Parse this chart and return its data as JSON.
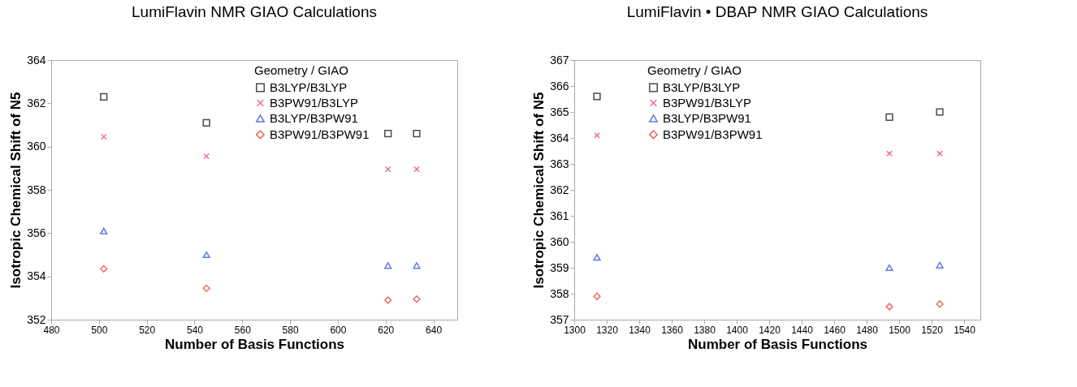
{
  "chart_data": [
    {
      "type": "scatter",
      "title": "LumiFlavin NMR GIAO Calculations",
      "xlabel": "Number of Basis Functions",
      "ylabel": "Isotropic Chemical Shift of N5",
      "legend_title": "Geometry / GIAO",
      "legend": "top",
      "grid": false,
      "xlim": [
        480,
        650
      ],
      "xticks": [
        480,
        500,
        520,
        540,
        560,
        580,
        600,
        620,
        640
      ],
      "ylim": [
        352,
        364
      ],
      "yticks": [
        352,
        354,
        356,
        358,
        360,
        362,
        364
      ],
      "x": [
        502,
        545,
        621,
        633
      ],
      "series": [
        {
          "name": "B3LYP/B3LYP",
          "color": "#000000",
          "marker": "square",
          "values": [
            362.3,
            361.1,
            360.6,
            360.6
          ]
        },
        {
          "name": "B3PW91/B3LYP",
          "color": "#e8308c",
          "marker": "cross",
          "values": [
            360.45,
            359.55,
            358.95,
            358.95
          ]
        },
        {
          "name": "B3LYP/B3PW91",
          "color": "#1f3fe0",
          "marker": "triangle",
          "values": [
            356.1,
            355.0,
            354.5,
            354.5
          ]
        },
        {
          "name": "B3PW91/B3PW91",
          "color": "#e0301e",
          "marker": "diamond",
          "values": [
            354.35,
            353.45,
            352.9,
            352.95
          ]
        }
      ]
    },
    {
      "type": "scatter",
      "title": "LumiFlavin • DBAP NMR GIAO Calculations",
      "xlabel": "Number of Basis Functions",
      "ylabel": "Isotropic Chemical Shift of N5",
      "legend_title": "Geometry / GIAO",
      "legend": "top left",
      "grid": false,
      "xlim": [
        1300,
        1550
      ],
      "xticks": [
        1300,
        1320,
        1340,
        1360,
        1380,
        1400,
        1420,
        1440,
        1460,
        1480,
        1500,
        1520,
        1540
      ],
      "ylim": [
        357,
        367
      ],
      "yticks": [
        357,
        358,
        359,
        360,
        361,
        362,
        363,
        364,
        365,
        366,
        367
      ],
      "x": [
        1314,
        1494,
        1525
      ],
      "series": [
        {
          "name": "B3LYP/B3LYP",
          "color": "#000000",
          "marker": "square",
          "values": [
            365.6,
            364.8,
            365.0
          ]
        },
        {
          "name": "B3PW91/B3LYP",
          "color": "#e8308c",
          "marker": "cross",
          "values": [
            364.1,
            363.4,
            363.4
          ]
        },
        {
          "name": "B3LYP/B3PW91",
          "color": "#1f3fe0",
          "marker": "triangle",
          "values": [
            359.4,
            359.0,
            359.1
          ]
        },
        {
          "name": "B3PW91/B3PW91",
          "color": "#e0301e",
          "marker": "diamond",
          "values": [
            357.9,
            357.5,
            357.6
          ]
        }
      ]
    }
  ]
}
